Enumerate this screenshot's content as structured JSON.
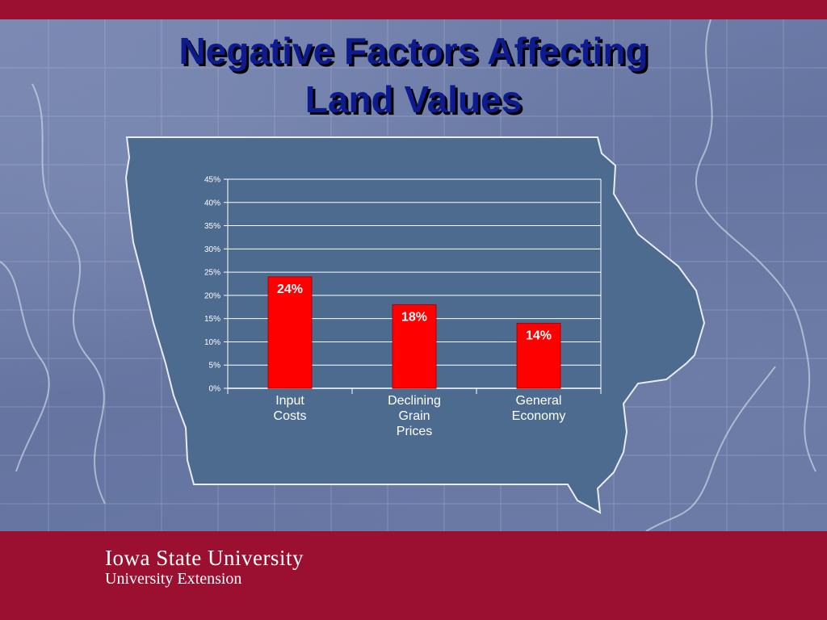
{
  "slide": {
    "title_line1": "Negative Factors Affecting",
    "title_line2": "Land Values",
    "footer_university": "Iowa State University",
    "footer_sub": "University Extension"
  },
  "colors": {
    "band": "#9b0f31",
    "title": "#0d1b8c",
    "bar": "#ff0000",
    "plot_area": "#4d6b8f"
  },
  "chart_data": {
    "type": "bar",
    "title": "",
    "xlabel": "",
    "ylabel": "",
    "categories": [
      [
        "Input",
        "Costs"
      ],
      [
        "Declining",
        "Grain",
        "Prices"
      ],
      [
        "General",
        "Economy"
      ]
    ],
    "values": [
      24,
      18,
      14
    ],
    "data_labels": [
      "24%",
      "18%",
      "14%"
    ],
    "ylim": [
      0,
      45
    ],
    "yticks": [
      0,
      5,
      10,
      15,
      20,
      25,
      30,
      35,
      40,
      45
    ],
    "ytick_labels": [
      "0%",
      "5%",
      "10%",
      "15%",
      "20%",
      "25%",
      "30%",
      "35%",
      "40%",
      "45%"
    ],
    "grid": true,
    "legend": "none"
  }
}
